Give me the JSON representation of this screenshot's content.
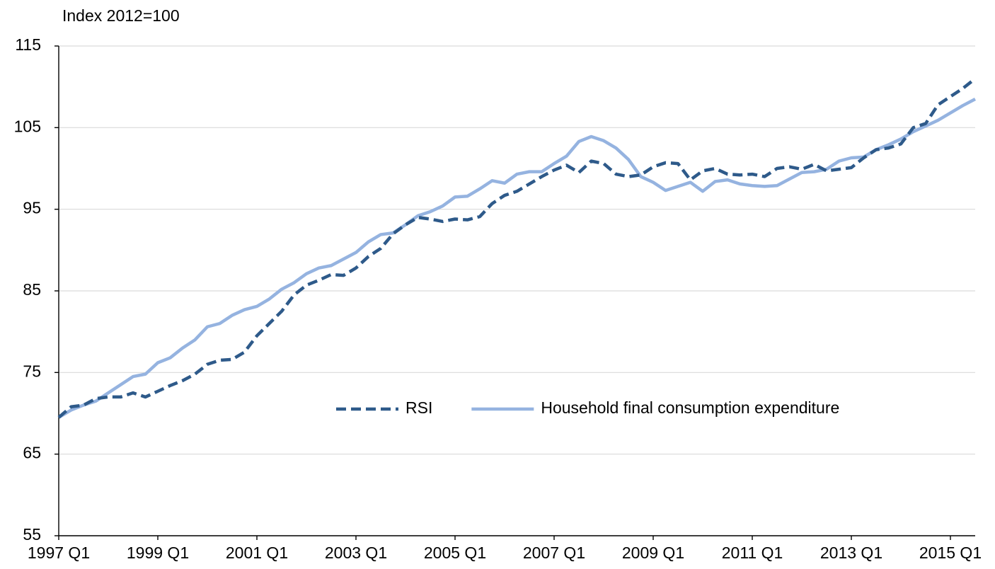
{
  "chart_data": {
    "type": "line",
    "y_label": "Index 2012=100",
    "categories": [
      "1997 Q1",
      null,
      null,
      null,
      null,
      null,
      null,
      null,
      "1999 Q1",
      null,
      null,
      null,
      null,
      null,
      null,
      null,
      "2001 Q1",
      null,
      null,
      null,
      null,
      null,
      null,
      null,
      "2003 Q1",
      null,
      null,
      null,
      null,
      null,
      null,
      null,
      "2005 Q1",
      null,
      null,
      null,
      null,
      null,
      null,
      null,
      "2007 Q1",
      null,
      null,
      null,
      null,
      null,
      null,
      null,
      "2009 Q1",
      null,
      null,
      null,
      null,
      null,
      null,
      null,
      "2011 Q1",
      null,
      null,
      null,
      null,
      null,
      null,
      null,
      "2013 Q1",
      null,
      null,
      null,
      null,
      null,
      null,
      null,
      "2015 Q1",
      null,
      null
    ],
    "series": [
      {
        "name": "RSI",
        "color": "#2e5a8a",
        "dashed": true,
        "values": [
          69.5,
          70.8,
          71,
          71.8,
          72,
          72,
          72.5,
          72,
          72.7,
          73.4,
          74,
          74.8,
          76,
          76.5,
          76.6,
          77.5,
          79.5,
          81,
          82.5,
          84.5,
          85.7,
          86.3,
          87,
          86.9,
          87.8,
          89.2,
          90.2,
          92,
          93.1,
          94,
          93.8,
          93.5,
          93.8,
          93.7,
          94.1,
          95.7,
          96.7,
          97.2,
          98.1,
          99,
          99.8,
          100.4,
          99.5,
          100.9,
          100.6,
          99.3,
          99,
          99.2,
          100.2,
          100.7,
          100.6,
          98.6,
          99.7,
          100,
          99.3,
          99.2,
          99.3,
          99,
          100,
          100.2,
          99.9,
          100.5,
          99.7,
          99.9,
          100.1,
          101.3,
          102.3,
          102.5,
          103,
          105,
          105.5,
          107.8,
          108.8,
          109.8,
          111
        ]
      },
      {
        "name": "Household final consumption expenditure",
        "color": "#95b3e0",
        "dashed": false,
        "values": [
          69.5,
          70.4,
          71,
          71.5,
          72.5,
          73.5,
          74.5,
          74.8,
          76.2,
          76.8,
          78,
          79,
          80.6,
          81,
          82,
          82.7,
          83.1,
          84,
          85.2,
          86,
          87.1,
          87.8,
          88.1,
          88.9,
          89.7,
          91,
          91.9,
          92.1,
          93.1,
          94.2,
          94.7,
          95.4,
          96.5,
          96.6,
          97.5,
          98.5,
          98.2,
          99.3,
          99.6,
          99.6,
          100.6,
          101.5,
          103.3,
          103.9,
          103.4,
          102.5,
          101.1,
          99,
          98.3,
          97.3,
          97.8,
          98.3,
          97.2,
          98.4,
          98.6,
          98.1,
          97.9,
          97.8,
          97.9,
          98.7,
          99.5,
          99.6,
          99.9,
          100.9,
          101.3,
          101.4,
          102.3,
          102.9,
          103.6,
          104.5,
          105.2,
          105.9,
          106.8,
          107.7,
          108.5
        ]
      }
    ],
    "ylim": [
      55,
      115
    ],
    "yticks": [
      55,
      65,
      75,
      85,
      95,
      105,
      115
    ],
    "grid": true,
    "legend": "center"
  }
}
